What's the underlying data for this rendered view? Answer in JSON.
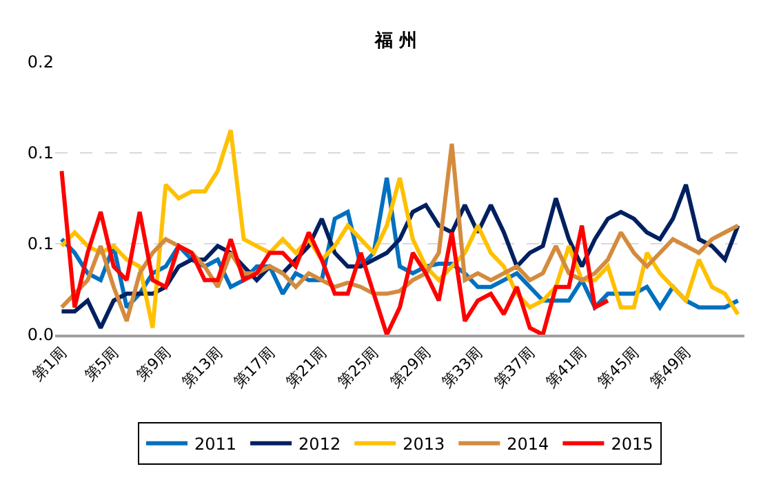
{
  "chart_data": {
    "type": "line",
    "title": "福 州",
    "categories": [
      "第1周",
      null,
      null,
      null,
      "第5周",
      null,
      null,
      null,
      "第9周",
      null,
      null,
      null,
      "第13周",
      null,
      null,
      null,
      "第17周",
      null,
      null,
      null,
      "第21周",
      null,
      null,
      null,
      "第25周",
      null,
      null,
      null,
      "第29周",
      null,
      null,
      null,
      "第33周",
      null,
      null,
      null,
      "第37周",
      null,
      null,
      null,
      "第41周",
      null,
      null,
      null,
      "第45周",
      null,
      null,
      null,
      "第49周",
      null,
      null,
      null,
      null
    ],
    "ylim": [
      0,
      0.2
    ],
    "yticks": [
      {
        "value": 0,
        "label": "0.0"
      },
      {
        "value": 0.0667,
        "label": "0.1"
      },
      {
        "value": 0.1333,
        "label": "0.1"
      },
      {
        "value": 0.2,
        "label": "0.2"
      }
    ],
    "grid": "y",
    "legend": "bottom",
    "marker": "none",
    "line_style": "solid",
    "series": [
      {
        "name": "2011",
        "color": "#0070c0",
        "values": [
          0.07,
          0.06,
          0.045,
          0.04,
          0.065,
          0.02,
          0.03,
          0.045,
          0.05,
          0.065,
          0.055,
          0.05,
          0.055,
          0.035,
          0.04,
          0.05,
          0.05,
          0.03,
          0.045,
          0.04,
          0.04,
          0.085,
          0.09,
          0.05,
          0.06,
          0.115,
          0.05,
          0.045,
          0.05,
          0.052,
          0.052,
          0.045,
          0.035,
          0.035,
          0.04,
          0.045,
          0.035,
          0.025,
          0.025,
          0.025,
          0.04,
          0.02,
          0.03,
          0.03,
          0.03,
          0.035,
          0.02,
          0.035,
          0.025,
          0.02,
          0.02,
          0.02,
          0.025
        ]
      },
      {
        "name": "2012",
        "color": "#002060",
        "values": [
          0.017,
          0.017,
          0.025,
          0.005,
          0.025,
          0.03,
          0.03,
          0.03,
          0.035,
          0.05,
          0.055,
          0.055,
          0.065,
          0.06,
          0.05,
          0.04,
          0.05,
          0.045,
          0.055,
          0.065,
          0.085,
          0.06,
          0.05,
          0.05,
          0.055,
          0.06,
          0.07,
          0.09,
          0.095,
          0.08,
          0.075,
          0.095,
          0.075,
          0.095,
          0.075,
          0.05,
          0.06,
          0.065,
          0.1,
          0.07,
          0.05,
          0.07,
          0.085,
          0.09,
          0.085,
          0.075,
          0.07,
          0.085,
          0.11,
          0.07,
          0.065,
          0.055,
          0.08
        ]
      },
      {
        "name": "2013",
        "color": "#ffc000",
        "values": [
          0.065,
          0.075,
          0.065,
          0.06,
          0.065,
          0.055,
          0.05,
          0.005,
          0.11,
          0.1,
          0.105,
          0.105,
          0.12,
          0.15,
          0.07,
          0.065,
          0.06,
          0.07,
          0.06,
          0.07,
          0.055,
          0.065,
          0.08,
          0.07,
          0.06,
          0.08,
          0.115,
          0.07,
          0.05,
          0.04,
          0.05,
          0.06,
          0.08,
          0.06,
          0.05,
          0.03,
          0.02,
          0.025,
          0.035,
          0.065,
          0.04,
          0.04,
          0.05,
          0.02,
          0.02,
          0.06,
          0.045,
          0.035,
          0.025,
          0.055,
          0.035,
          0.03,
          0.015
        ]
      },
      {
        "name": "2014",
        "color": "#d48b3e",
        "values": [
          0.02,
          0.03,
          0.04,
          0.065,
          0.035,
          0.01,
          0.045,
          0.06,
          0.07,
          0.065,
          0.06,
          0.05,
          0.035,
          0.06,
          0.045,
          0.045,
          0.05,
          0.045,
          0.035,
          0.045,
          0.04,
          0.035,
          0.038,
          0.035,
          0.03,
          0.03,
          0.032,
          0.04,
          0.045,
          0.06,
          0.14,
          0.04,
          0.045,
          0.04,
          0.045,
          0.05,
          0.04,
          0.045,
          0.065,
          0.045,
          0.04,
          0.045,
          0.055,
          0.075,
          0.06,
          0.05,
          0.06,
          0.07,
          0.065,
          0.06,
          0.07,
          0.075,
          0.08
        ]
      },
      {
        "name": "2015",
        "color": "#ff0000",
        "values": [
          0.12,
          0.02,
          0.06,
          0.09,
          0.05,
          0.04,
          0.09,
          0.04,
          0.035,
          0.065,
          0.06,
          0.04,
          0.04,
          0.07,
          0.04,
          0.045,
          0.06,
          0.06,
          0.05,
          0.075,
          0.055,
          0.03,
          0.03,
          0.06,
          0.03,
          0.0,
          0.02,
          0.06,
          0.045,
          0.025,
          0.075,
          0.01,
          0.025,
          0.03,
          0.015,
          0.035,
          0.005,
          0.0,
          0.035,
          0.035,
          0.08,
          0.02,
          0.025,
          null,
          null,
          null,
          null,
          null,
          null,
          null,
          null,
          null,
          null
        ]
      }
    ]
  }
}
